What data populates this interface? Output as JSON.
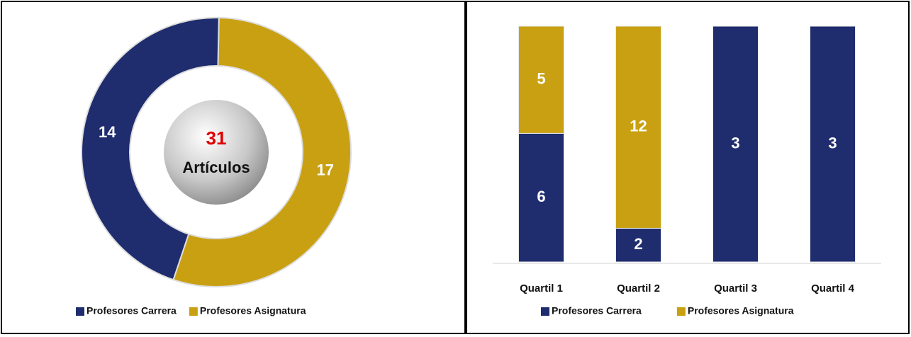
{
  "chart_data": [
    {
      "type": "donut",
      "labels": [
        "Profesores Carrera",
        "Profesores Asignatura"
      ],
      "values": [
        14,
        17
      ],
      "colors": [
        "#1f2d6e",
        "#c9a012"
      ],
      "center_value": 31,
      "center_label": "Artículos",
      "legend": "bottom"
    },
    {
      "type": "stacked_bar_100",
      "categories": [
        "Quartil 1",
        "Quartil 2",
        "Quartil 3",
        "Quartil 4"
      ],
      "series": [
        {
          "name": "Profesores Carrera",
          "color": "#1f2d6e",
          "values": [
            6,
            2,
            3,
            3
          ]
        },
        {
          "name": "Profesores Asignatura",
          "color": "#c9a012",
          "values": [
            5,
            12,
            null,
            null
          ]
        }
      ],
      "legend": "bottom"
    }
  ]
}
